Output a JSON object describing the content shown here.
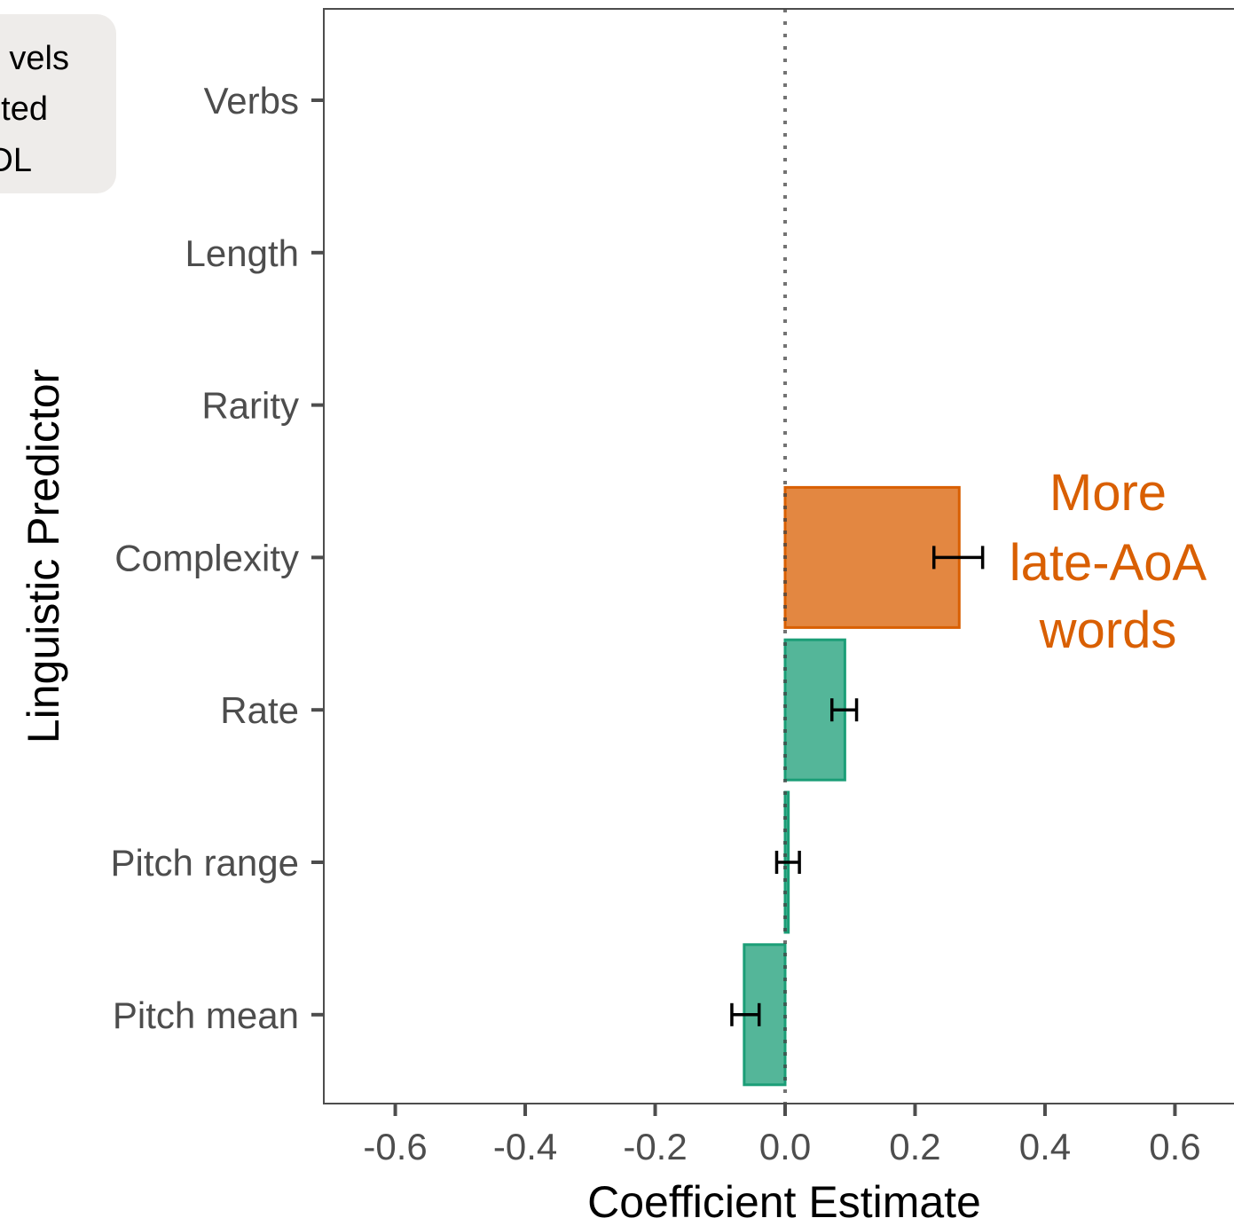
{
  "chart_data": {
    "type": "bar",
    "orientation": "horizontal",
    "xlabel": "Coefficient Estimate",
    "ylabel": "Linguistic Predictor",
    "xlim": [
      -0.71,
      0.71
    ],
    "x_ticks": [
      -0.6,
      -0.4,
      -0.2,
      0.0,
      0.2,
      0.4,
      0.6
    ],
    "x_tick_labels": [
      "-0.6",
      "-0.4",
      "-0.2",
      "0.0",
      "0.2",
      "0.4",
      "0.6"
    ],
    "categories": [
      "Verbs",
      "Length",
      "Rarity",
      "Complexity",
      "Rate",
      "Pitch range",
      "Pitch mean"
    ],
    "values": [
      null,
      null,
      null,
      0.268,
      0.092,
      0.005,
      -0.063
    ],
    "error_bars": [
      null,
      null,
      null,
      [
        0.229,
        0.304
      ],
      [
        0.072,
        0.11
      ],
      [
        -0.013,
        0.022
      ],
      [
        -0.082,
        -0.04
      ]
    ],
    "bar_colors": [
      null,
      null,
      null,
      "#d95f02",
      "#1b9e77",
      "#1b9e77",
      "#1b9e77"
    ],
    "reference_line": 0,
    "grid": false,
    "annotation": {
      "lines": [
        "More",
        "late-AoA",
        "words"
      ],
      "color": "#d95f02"
    },
    "legend_partial": {
      "lines": [
        "vels",
        "ted",
        "DL"
      ],
      "background": "#eeecea"
    }
  },
  "colors": {
    "axis": "#4d4d4d",
    "tick_label": "#4d4d4d",
    "green": "#1b9e77",
    "orange": "#d95f02"
  }
}
